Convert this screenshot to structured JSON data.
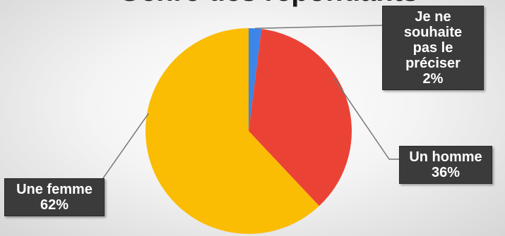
{
  "chart_data": {
    "type": "pie",
    "title": "Genre des répondants",
    "slices": [
      {
        "name": "Je ne souhaite pas le préciser",
        "label_lines": [
          "Je ne souhaite",
          "pas le préciser"
        ],
        "value": 2,
        "value_label": "2%",
        "color": "#3d85e8"
      },
      {
        "name": "Un homme",
        "label_lines": [
          "Un homme"
        ],
        "value": 36,
        "value_label": "36%",
        "color": "#ea4335"
      },
      {
        "name": "Une femme",
        "label_lines": [
          "Une femme"
        ],
        "value": 62,
        "value_label": "62%",
        "color": "#fbbc04"
      }
    ]
  }
}
